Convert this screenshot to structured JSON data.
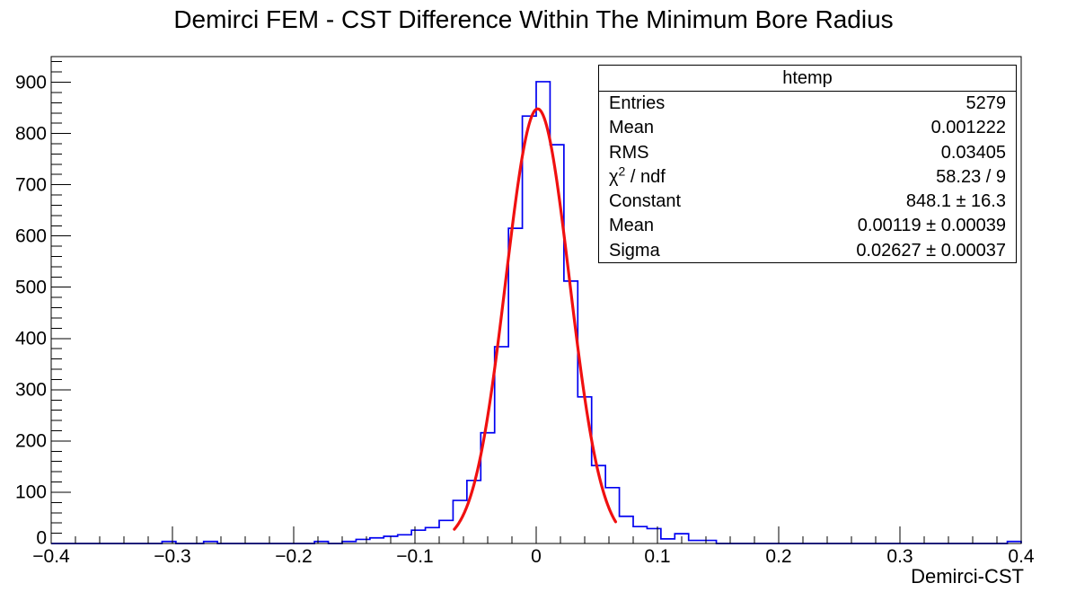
{
  "title": "Demirci FEM - CST Difference Within The Minimum Bore Radius",
  "stats_box": {
    "title": "htemp",
    "rows": [
      {
        "label": "Entries",
        "value": "5279"
      },
      {
        "label": "Mean",
        "value": "0.001222"
      },
      {
        "label": "RMS",
        "value": "0.03405"
      },
      {
        "label_base": "χ",
        "label_sup": "2",
        "label_rest": " / ndf",
        "value": "58.23 / 9"
      },
      {
        "label": "Constant",
        "value": "848.1 ± 16.3"
      },
      {
        "label": "Mean",
        "value": "0.00119 ± 0.00039"
      },
      {
        "label": "Sigma",
        "value": "0.02627 ± 0.00037"
      }
    ]
  },
  "chart_data": {
    "type": "histogram",
    "title": "Demirci FEM - CST Difference Within The Minimum Bore Radius",
    "xlabel": "Demirci-CST",
    "ylabel": "",
    "x_range": [
      -0.4,
      0.4
    ],
    "y_range": [
      0,
      950
    ],
    "grid": false,
    "n_bins": 70,
    "bin_start": -0.4,
    "bin_width": 0.011428571,
    "bin_counts": [
      0,
      0,
      0,
      0,
      0,
      0,
      0,
      0,
      4,
      0,
      0,
      4,
      0,
      0,
      0,
      0,
      0,
      0,
      0,
      4,
      0,
      4,
      8,
      11,
      14,
      17,
      26,
      31,
      45,
      84,
      123,
      216,
      384,
      615,
      834,
      901,
      778,
      512,
      286,
      152,
      109,
      53,
      33,
      29,
      9,
      19,
      6,
      6,
      0,
      0,
      0,
      0,
      0,
      0,
      0,
      0,
      0,
      0,
      0,
      0,
      0,
      0,
      0,
      0,
      0,
      0,
      0,
      0,
      0,
      4
    ],
    "x_tick_values": [
      -0.4,
      -0.3,
      -0.2,
      -0.1,
      0,
      0.1,
      0.2,
      0.3,
      0.4
    ],
    "x_tick_labels": [
      "−0.4",
      "−0.3",
      "−0.2",
      "−0.1",
      "0",
      "0.1",
      "0.2",
      "0.3",
      "0.4"
    ],
    "x_minor_step": 0.02,
    "y_tick_values": [
      0,
      100,
      200,
      300,
      400,
      500,
      600,
      700,
      800,
      900
    ],
    "y_tick_labels": [
      "0",
      "100",
      "200",
      "300",
      "400",
      "500",
      "600",
      "700",
      "800",
      "900"
    ],
    "y_minor_step": 20,
    "fit": {
      "name": "gaus",
      "constant": 848.1,
      "mean": 0.00119,
      "sigma": 0.02627,
      "draw_range": [
        -0.0675,
        0.0655
      ]
    },
    "colors": {
      "histogram_line": "#0000f0",
      "fit_line": "#f01010",
      "frame": "#000000",
      "background": "#ffffff"
    }
  }
}
